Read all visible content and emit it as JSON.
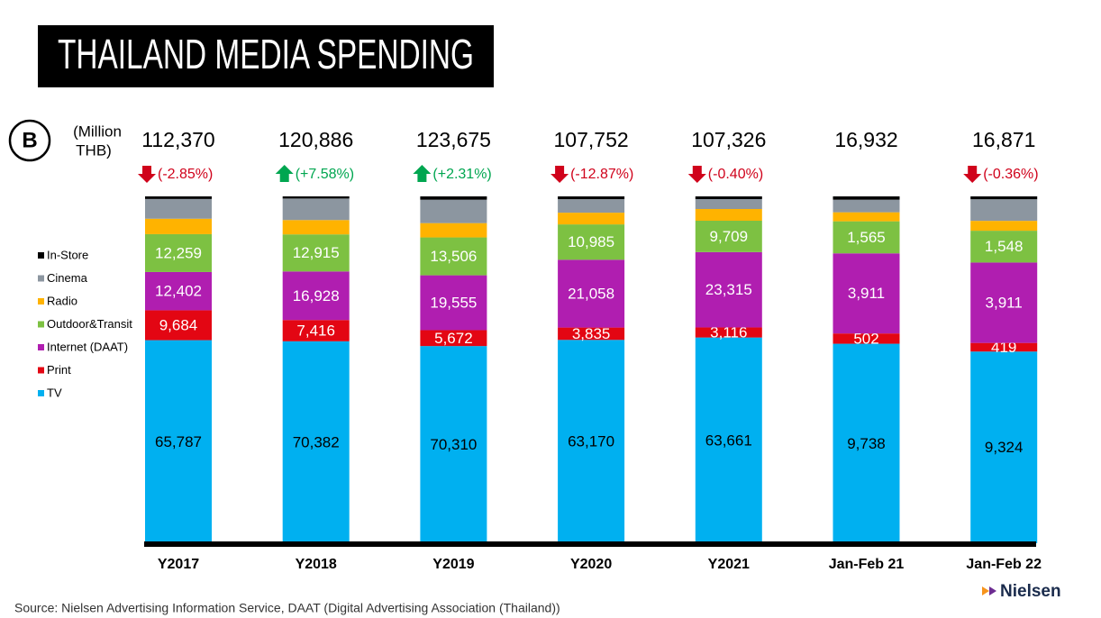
{
  "chart_data": {
    "type": "stacked_bar_100",
    "title": "THAILAND MEDIA SPENDING",
    "unit_label": [
      "(Million",
      "THB)"
    ],
    "logo": "B",
    "brand": "Nielsen",
    "source": "Source: Nielsen Advertising Information Service, DAAT (Digital Advertising Association (Thailand))",
    "categories": [
      "Y2017",
      "Y2018",
      "Y2019",
      "Y2020",
      "Y2021",
      "Jan-Feb 21",
      "Jan-Feb 22"
    ],
    "totals": [
      {
        "value": 112370,
        "label": "112,370"
      },
      {
        "value": 120886,
        "label": "120,886"
      },
      {
        "value": 123675,
        "label": "123,675"
      },
      {
        "value": 107752,
        "label": "107,752"
      },
      {
        "value": 107326,
        "label": "107,326"
      },
      {
        "value": 16932,
        "label": "16,932"
      },
      {
        "value": 16871,
        "label": "16,871"
      }
    ],
    "changes": [
      {
        "value": -2.85,
        "label": "(-2.85%)"
      },
      {
        "value": 7.58,
        "label": "(+7.58%)"
      },
      {
        "value": 2.31,
        "label": "(+2.31%)"
      },
      {
        "value": -12.87,
        "label": "(-12.87%)"
      },
      {
        "value": -0.4,
        "label": "(-0.40%)"
      },
      null,
      {
        "value": -0.36,
        "label": "(-0.36%)"
      }
    ],
    "series": [
      {
        "name": "TV",
        "color": "#00b0f0",
        "values": [
          65787,
          70382,
          70310,
          63170,
          63661,
          9738,
          9324
        ],
        "value_labels": [
          "65,787",
          "70,382",
          "70,310",
          "63,170",
          "63,661",
          "9,738",
          "9,324"
        ]
      },
      {
        "name": "Print",
        "color": "#e30613",
        "values": [
          9684,
          7416,
          5672,
          3835,
          3116,
          502,
          419
        ],
        "value_labels": [
          "9,684",
          "7,416",
          "5,672",
          "3,835",
          "3,116",
          "502",
          "419"
        ]
      },
      {
        "name": "Internet (DAAT)",
        "color": "#b01eb0",
        "values": [
          12402,
          16928,
          19555,
          21058,
          23315,
          3911,
          3911
        ],
        "value_labels": [
          "12,402",
          "16,928",
          "19,555",
          "21,058",
          "23,315",
          "3,911",
          "3,911"
        ]
      },
      {
        "name": "Outdoor&Transit",
        "color": "#7dc142",
        "values": [
          12259,
          12915,
          13506,
          10985,
          9709,
          1565,
          1548
        ],
        "value_labels": [
          "12,259",
          "12,915",
          "13,506",
          "10,985",
          "9,709",
          "1,565",
          "1,548"
        ]
      },
      {
        "name": "Radio",
        "color": "#ffb300",
        "values": [
          5000,
          5000,
          5100,
          3640,
          3620,
          440,
          480
        ]
      },
      {
        "name": "Cinema",
        "color": "#8c96a0",
        "values": [
          6400,
          7500,
          8350,
          4200,
          3070,
          615,
          1050
        ]
      },
      {
        "name": "In-Store",
        "color": "#000000",
        "values": [
          838,
          745,
          1182,
          864,
          835,
          161,
          139
        ]
      }
    ]
  }
}
